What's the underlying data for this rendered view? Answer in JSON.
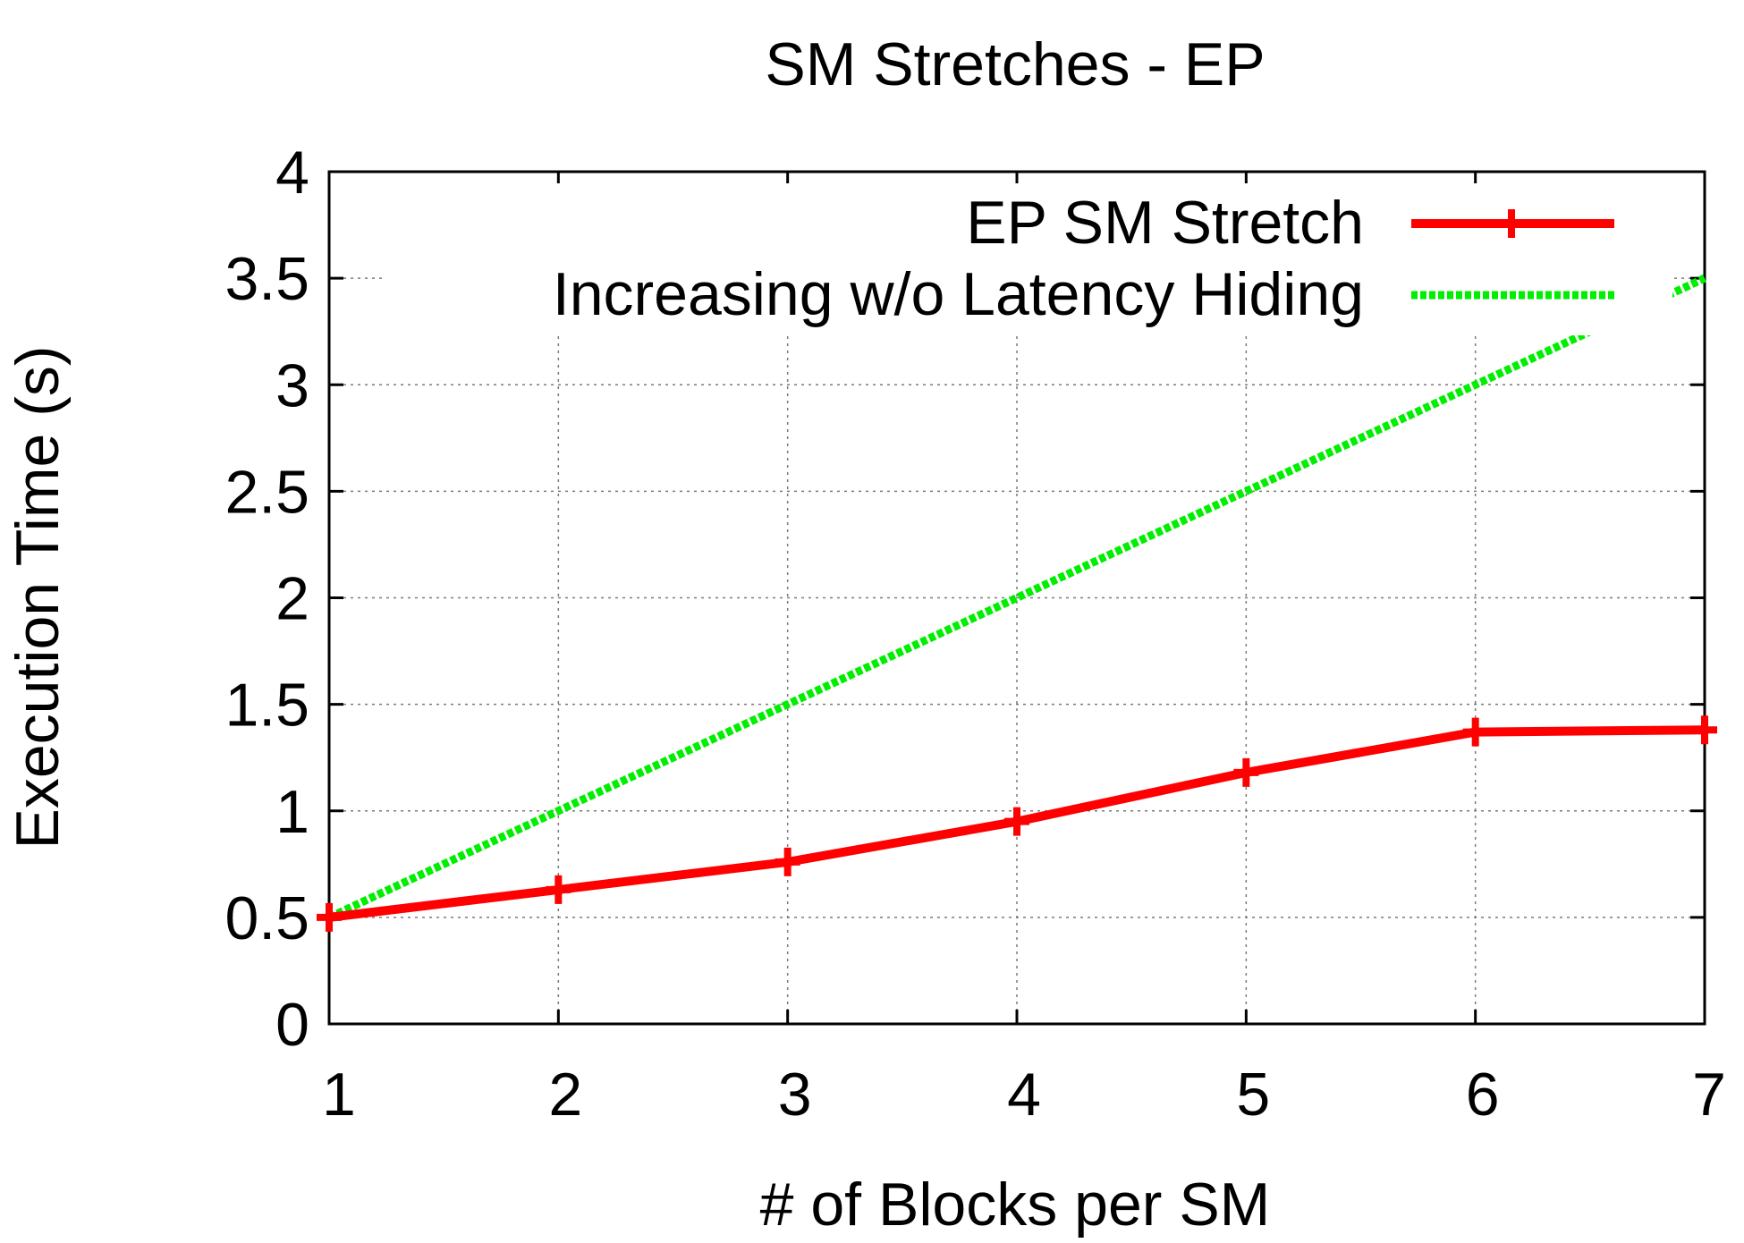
{
  "chart_data": {
    "type": "line",
    "title": "SM Stretches - EP",
    "xlabel": "# of Blocks per SM",
    "ylabel": "Execution Time (s)",
    "x": [
      1,
      2,
      3,
      4,
      5,
      6,
      7
    ],
    "x_ticks": [
      "1",
      "2",
      "3",
      "4",
      "5",
      "6",
      "7"
    ],
    "y_ticks": [
      "0",
      "0.5",
      "1",
      "1.5",
      "2",
      "2.5",
      "3",
      "3.5",
      "4"
    ],
    "xlim": [
      1,
      7
    ],
    "ylim": [
      0,
      4
    ],
    "grid": true,
    "legend_position": "top-right",
    "series": [
      {
        "name": "EP SM Stretch",
        "color": "#ff0000",
        "style": "solid",
        "marker": "plus",
        "values": [
          0.5,
          0.63,
          0.76,
          0.95,
          1.18,
          1.37,
          1.38
        ]
      },
      {
        "name": "Increasing w/o Latency Hiding",
        "color": "#00ee00",
        "style": "dotted",
        "marker": "none",
        "values": [
          0.5,
          1.0,
          1.5,
          2.0,
          2.5,
          3.0,
          3.5
        ]
      }
    ]
  }
}
